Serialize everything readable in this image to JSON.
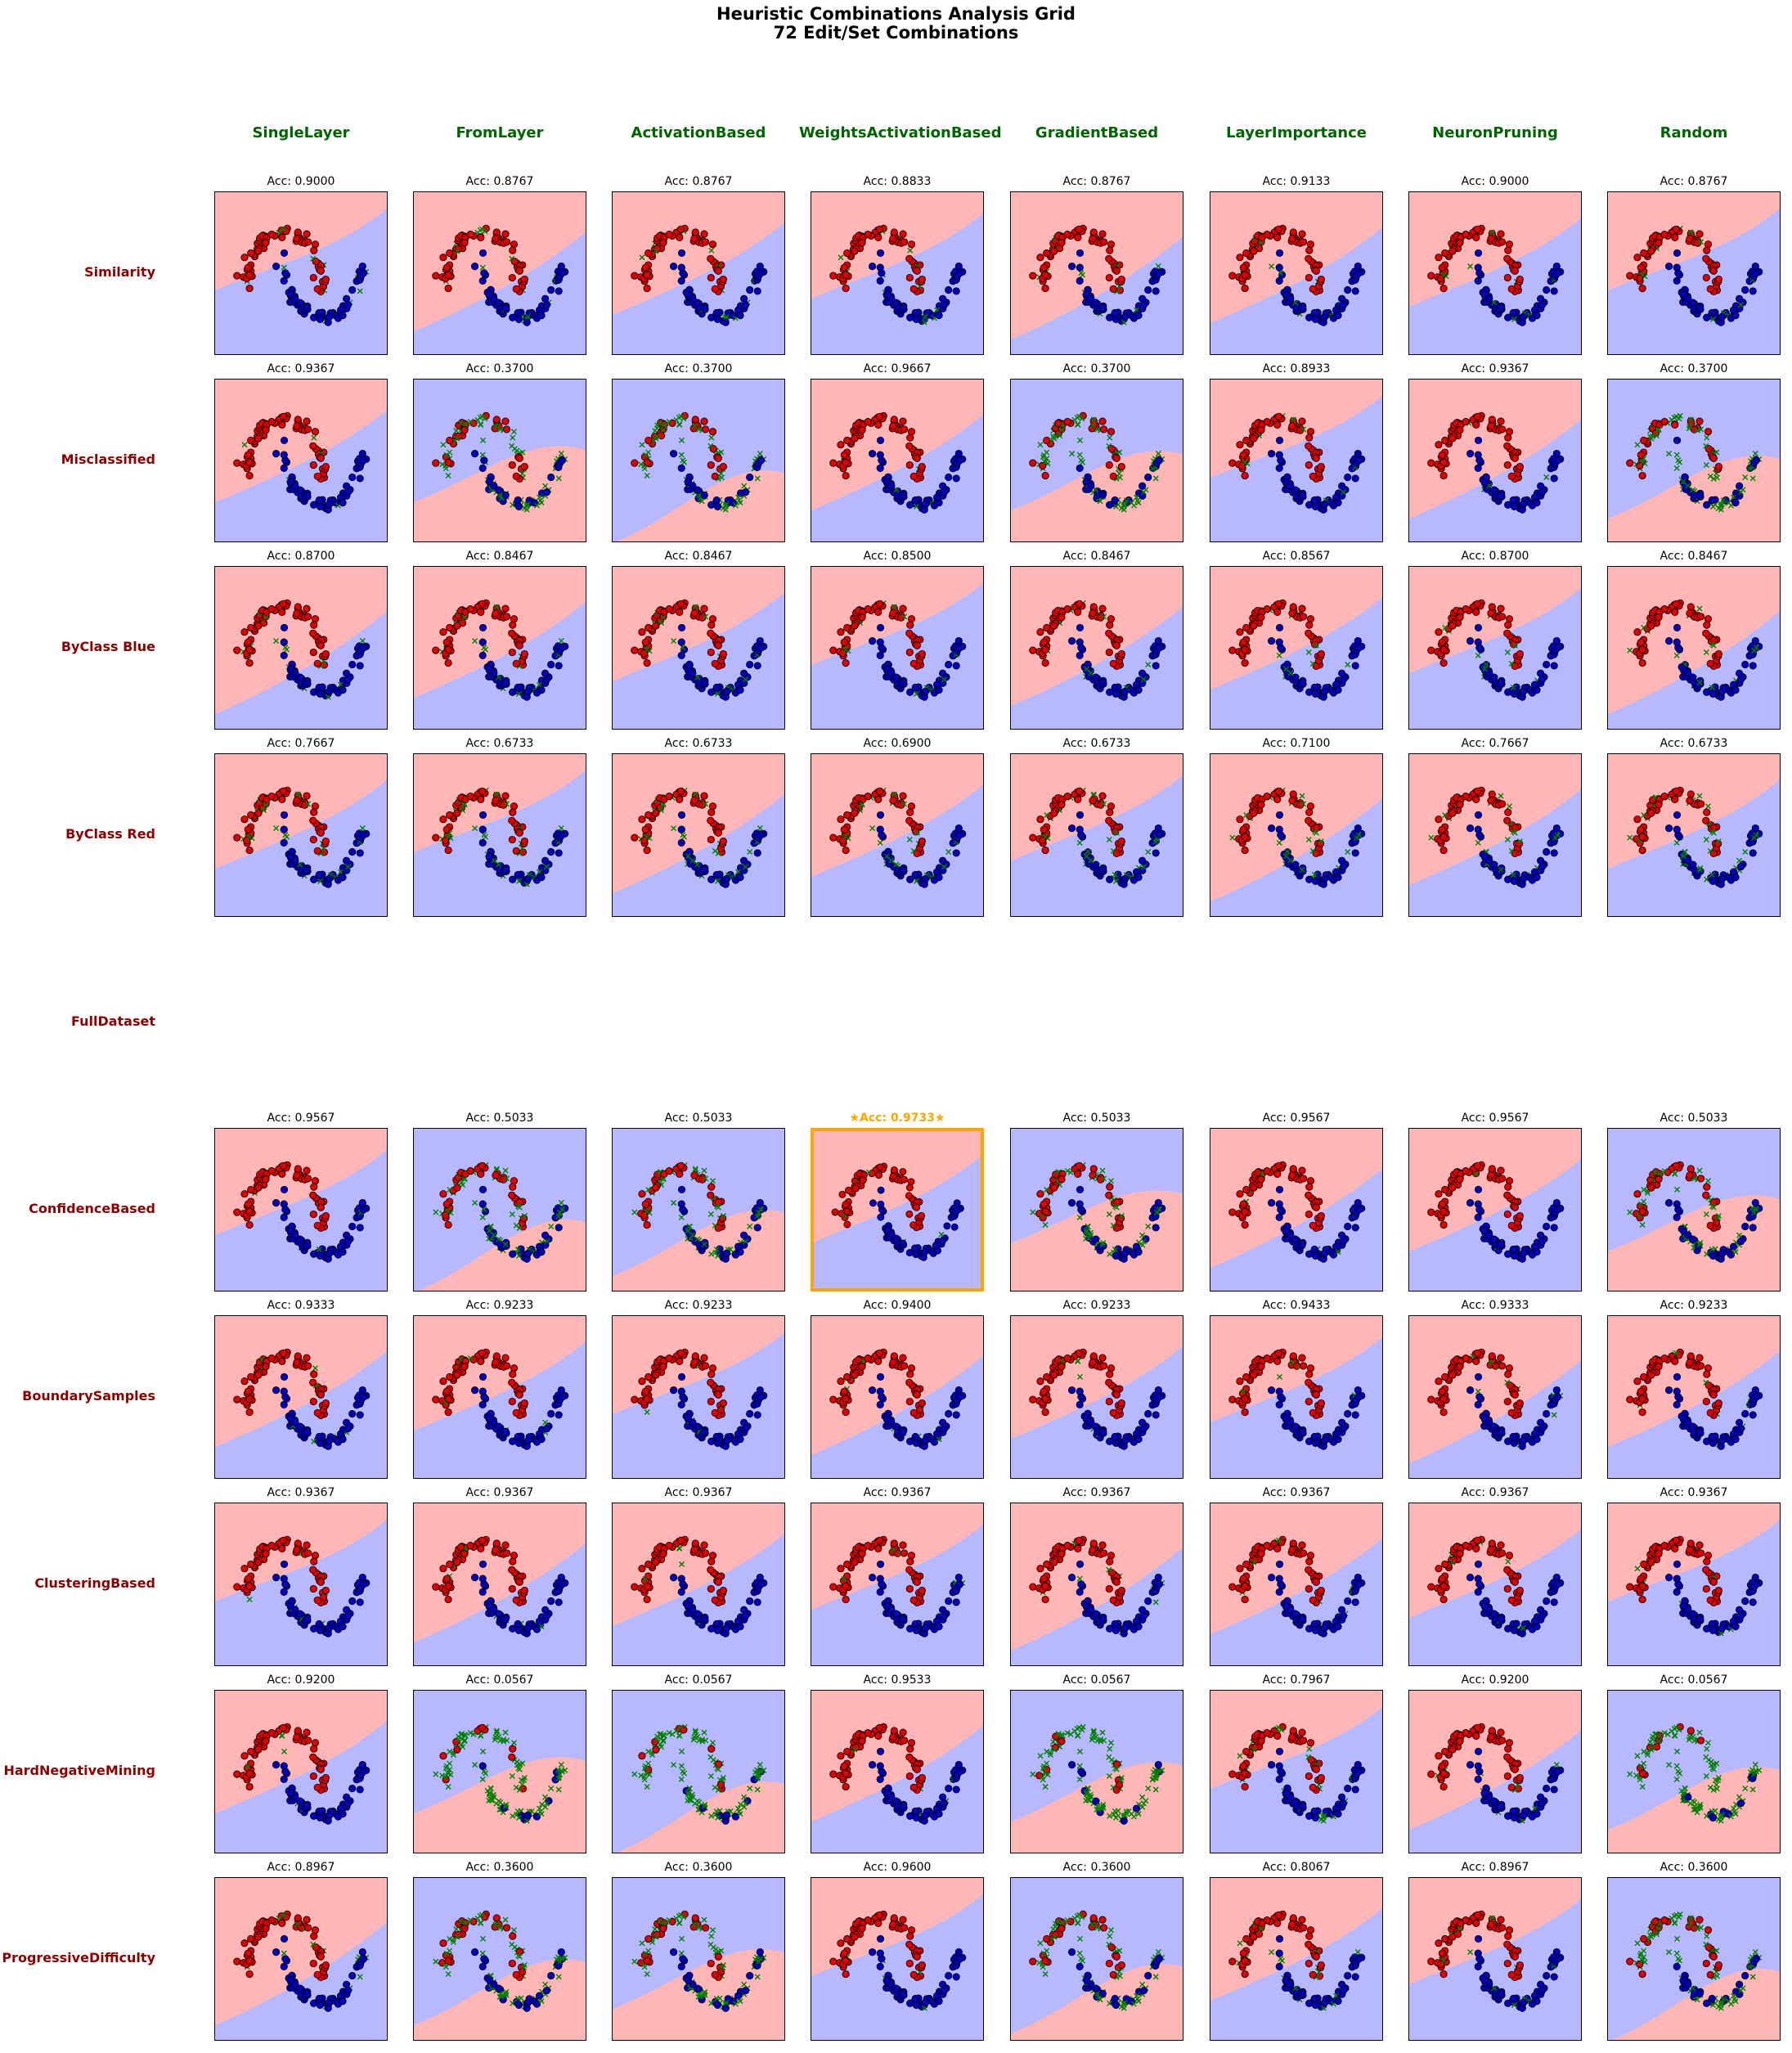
{
  "title_line1": "Heuristic Combinations Analysis Grid",
  "title_line2": "72 Edit/Set Combinations",
  "colors": {
    "red_region": "#ffb6b6",
    "blue_region": "#b8b8ff",
    "red_point": "#dd0000",
    "blue_point": "#0000bb",
    "edited_point": "#008000",
    "column_header": "#006400",
    "row_header": "#8b0000",
    "best_highlight": "#ffa500"
  },
  "chart_data": {
    "type": "scatter",
    "acc_prefix": "Acc: ",
    "columns": [
      "SingleLayer",
      "FromLayer",
      "ActivationBased",
      "WeightsActivationBased",
      "GradientBased",
      "LayerImportance",
      "NeuronPruning",
      "Random"
    ],
    "rows": [
      {
        "name": "Similarity",
        "acc": [
          "0.9000",
          "0.8767",
          "0.8767",
          "0.8833",
          "0.8767",
          "0.9133",
          "0.9000",
          "0.8767"
        ]
      },
      {
        "name": "Misclassified",
        "acc": [
          "0.9367",
          "0.3700",
          "0.3700",
          "0.9667",
          "0.3700",
          "0.8933",
          "0.9367",
          "0.3700"
        ]
      },
      {
        "name": "ByClass Blue",
        "acc": [
          "0.8700",
          "0.8467",
          "0.8467",
          "0.8500",
          "0.8467",
          "0.8567",
          "0.8700",
          "0.8467"
        ]
      },
      {
        "name": "ByClass Red",
        "acc": [
          "0.7667",
          "0.6733",
          "0.6733",
          "0.6900",
          "0.6733",
          "0.7100",
          "0.7667",
          "0.6733"
        ]
      },
      {
        "name": "FullDataset",
        "acc": []
      },
      {
        "name": "ConfidenceBased",
        "acc": [
          "0.9567",
          "0.5033",
          "0.5033",
          "0.9733",
          "0.5033",
          "0.9567",
          "0.9567",
          "0.5033"
        ]
      },
      {
        "name": "BoundarySamples",
        "acc": [
          "0.9333",
          "0.9233",
          "0.9233",
          "0.9400",
          "0.9233",
          "0.9433",
          "0.9333",
          "0.9233"
        ]
      },
      {
        "name": "ClusteringBased",
        "acc": [
          "0.9367",
          "0.9367",
          "0.9367",
          "0.9367",
          "0.9367",
          "0.9367",
          "0.9367",
          "0.9367"
        ]
      },
      {
        "name": "HardNegativeMining",
        "acc": [
          "0.9200",
          "0.0567",
          "0.0567",
          "0.9533",
          "0.0567",
          "0.7967",
          "0.9200",
          "0.0567"
        ]
      },
      {
        "name": "ProgressiveDifficulty",
        "acc": [
          "0.8967",
          "0.3600",
          "0.3600",
          "0.9600",
          "0.3600",
          "0.8067",
          "0.8967",
          "0.3600"
        ]
      }
    ],
    "best": {
      "row": 5,
      "col": 3,
      "label": "★Acc: 0.9733★"
    }
  }
}
